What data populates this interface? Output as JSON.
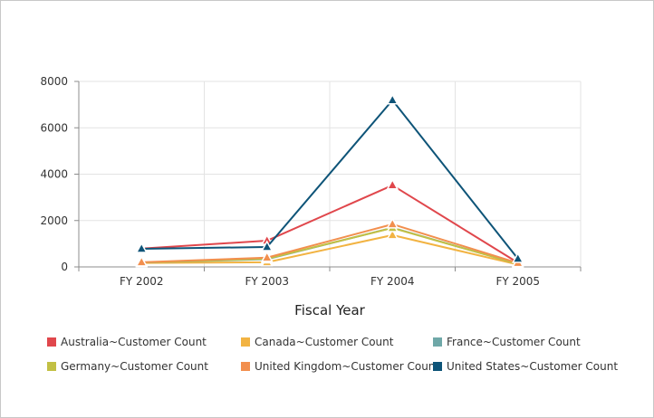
{
  "chart_data": {
    "type": "line",
    "title": "",
    "xlabel": "Fiscal Year",
    "ylabel": "",
    "categories": [
      "FY 2002",
      "FY 2003",
      "FY 2004",
      "FY 2005"
    ],
    "ylim": [
      0,
      8000
    ],
    "yticks": [
      "0",
      "2000",
      "4000",
      "6000",
      "8000"
    ],
    "ytick_values": [
      0,
      2000,
      4000,
      6000,
      8000
    ],
    "grid": true,
    "legend_position": "bottom",
    "marker": "triangle",
    "series": [
      {
        "name": "Australia~Customer Count",
        "color": "#e0474c",
        "values": [
          790,
          1130,
          3520,
          180
        ]
      },
      {
        "name": "Canada~Customer Count",
        "color": "#f2b342",
        "values": [
          170,
          200,
          1370,
          100
        ]
      },
      {
        "name": "France~Customer Count",
        "color": "#6fa8a8",
        "values": [
          190,
          330,
          1690,
          130
        ]
      },
      {
        "name": "Germany~Customer Count",
        "color": "#c2c044",
        "values": [
          190,
          350,
          1680,
          130
        ]
      },
      {
        "name": "United Kingdom~Customer Count",
        "color": "#f28f4e",
        "values": [
          200,
          400,
          1840,
          170
        ]
      },
      {
        "name": "United States~Customer Count",
        "color": "#0e5478",
        "values": [
          780,
          860,
          7190,
          350
        ]
      }
    ]
  }
}
